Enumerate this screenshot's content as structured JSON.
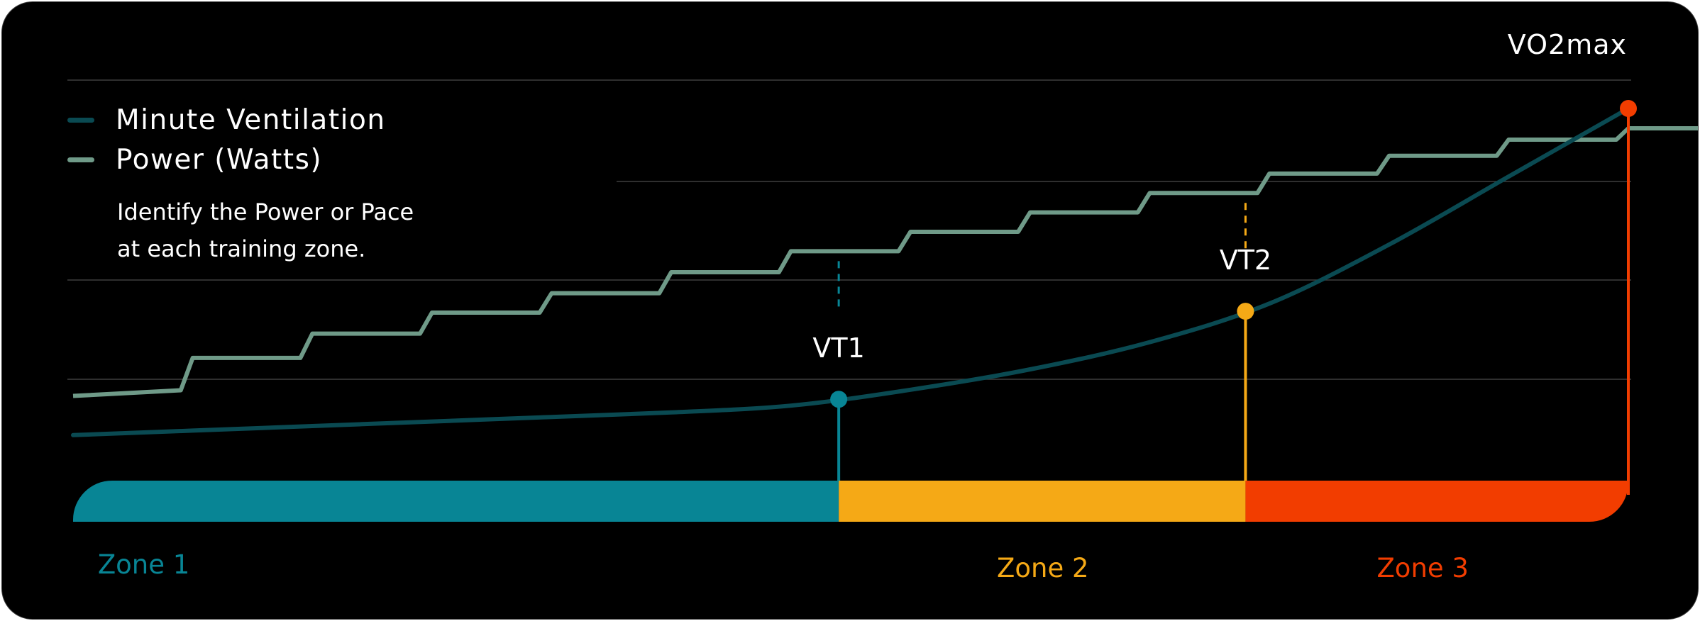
{
  "chart_data": {
    "type": "line",
    "title": "",
    "xlabel": "",
    "ylabel": "",
    "grid": true,
    "legend_placement": "top-left",
    "colors": {
      "background": "#000000",
      "minute_ventilation": "#0a4a52",
      "power": "#6f9a88",
      "zone1": "#088595",
      "zone2": "#f5a916",
      "zone3": "#f23d00",
      "gridline": "#3f3f3f"
    },
    "legend": [
      {
        "name": "Minute Ventilation",
        "color": "#0a4a52"
      },
      {
        "name": "Power (Watts)",
        "color": "#6f9a88"
      }
    ],
    "series": [
      {
        "name": "Minute Ventilation",
        "kind": "curve",
        "x": [
          0,
          100,
          200,
          300,
          400,
          500,
          600,
          700,
          800,
          900,
          1000,
          1100,
          1200,
          1300
        ],
        "y": [
          6,
          8,
          10,
          12,
          14,
          16,
          19,
          26,
          35,
          47,
          64,
          90,
          120,
          150
        ]
      },
      {
        "name": "Power (Watts)",
        "kind": "step",
        "x": [
          0,
          100,
          200,
          300,
          400,
          500,
          600,
          700,
          800,
          900,
          1000,
          1100,
          1200,
          1300
        ],
        "y": [
          80,
          100,
          115,
          128,
          140,
          153,
          166,
          178,
          190,
          202,
          214,
          225,
          235,
          242
        ]
      }
    ],
    "markers": [
      {
        "label": "VT1",
        "x": 640,
        "color": "#088595",
        "line_style": "solid"
      },
      {
        "label": "VT2",
        "x": 980,
        "color": "#f5a916",
        "line_style": "solid"
      },
      {
        "label": "VO2max",
        "x": 1300,
        "color": "#f23d00",
        "line_style": "solid"
      }
    ],
    "zones": [
      {
        "label": "Zone 1",
        "from": 0,
        "to": 640,
        "color": "#088595"
      },
      {
        "label": "Zone 2",
        "from": 640,
        "to": 980,
        "color": "#f5a916"
      },
      {
        "label": "Zone 3",
        "from": 980,
        "to": 1300,
        "color": "#f23d00"
      }
    ],
    "annotation": [
      "Identify the Power or Pace",
      "at each training zone."
    ]
  }
}
